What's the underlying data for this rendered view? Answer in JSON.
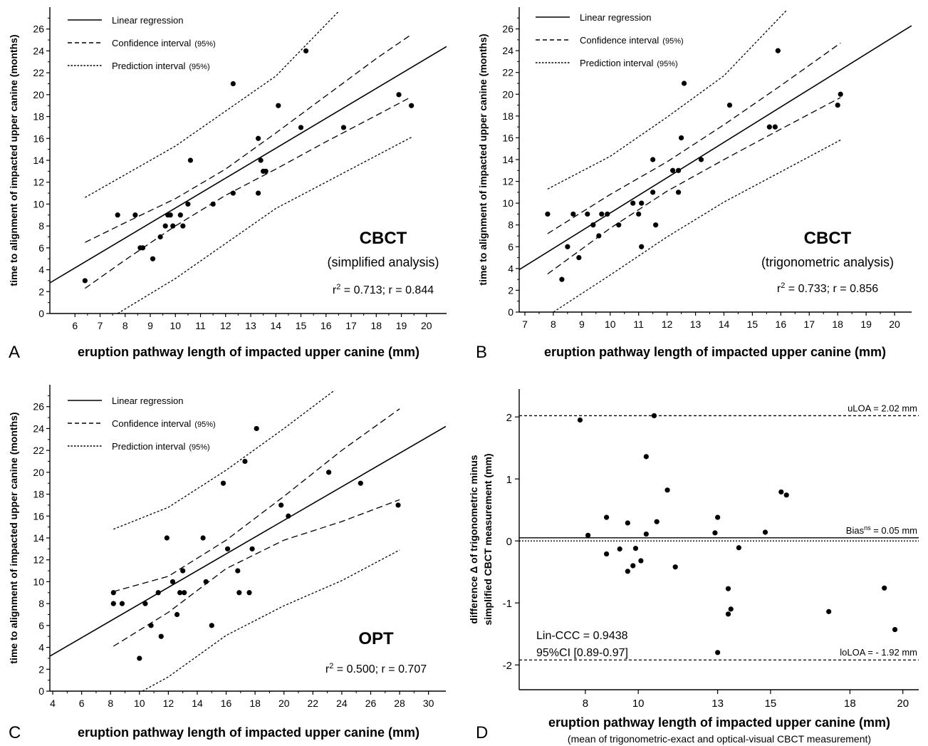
{
  "panels": [
    {
      "id": "A",
      "letter": "A",
      "type": "scatter",
      "xlabel": "eruption pathway length of impacted upper canine (mm)",
      "ylabel": "time to alignment of impacted upper canine (months)",
      "xlim": [
        5,
        20.8
      ],
      "ylim": [
        0,
        28
      ],
      "xticks": [
        6,
        7,
        8,
        9,
        10,
        11,
        12,
        13,
        14,
        15,
        16,
        17,
        18,
        19,
        20
      ],
      "yticks": [
        0,
        2,
        4,
        6,
        8,
        10,
        12,
        14,
        16,
        18,
        20,
        22,
        24,
        26
      ],
      "legend": [
        {
          "style": "solid",
          "label": "Linear regression",
          "suffix": ""
        },
        {
          "style": "dashed",
          "label": "Confidence interval",
          "suffix": "(95%)"
        },
        {
          "style": "dotted",
          "label": "Prediction interval",
          "suffix": "(95%)"
        }
      ],
      "title_big": "CBCT",
      "subtitle": "(simplified analysis)",
      "stats": {
        "r2_prefix": "r",
        "r2_sup": "2",
        "r2_rest": " = 0.713; r = 0.844"
      },
      "points": [
        [
          6.4,
          3
        ],
        [
          7.7,
          9
        ],
        [
          8.4,
          9
        ],
        [
          8.6,
          6
        ],
        [
          8.7,
          6
        ],
        [
          9.1,
          5
        ],
        [
          9.4,
          7
        ],
        [
          9.6,
          8
        ],
        [
          9.7,
          9
        ],
        [
          9.8,
          9
        ],
        [
          9.9,
          8
        ],
        [
          10.2,
          9
        ],
        [
          10.3,
          8
        ],
        [
          10.5,
          10
        ],
        [
          10.6,
          14
        ],
        [
          11.5,
          10
        ],
        [
          12.3,
          11
        ],
        [
          12.3,
          21
        ],
        [
          13.3,
          16
        ],
        [
          13.3,
          11
        ],
        [
          13.4,
          14
        ],
        [
          13.5,
          13
        ],
        [
          13.6,
          13
        ],
        [
          14.1,
          19
        ],
        [
          15,
          17
        ],
        [
          15.2,
          24
        ],
        [
          16.7,
          17
        ],
        [
          18.9,
          20
        ],
        [
          19.4,
          19
        ]
      ],
      "regression": [
        [
          5,
          2.8
        ],
        [
          20.8,
          24.4
        ]
      ],
      "ci_upper": [
        [
          6.4,
          6.5
        ],
        [
          8,
          8.3
        ],
        [
          10,
          10.5
        ],
        [
          12,
          13.2
        ],
        [
          14,
          16.5
        ],
        [
          16,
          19.9
        ],
        [
          18,
          23.3
        ],
        [
          19.4,
          25.5
        ]
      ],
      "ci_lower": [
        [
          6.4,
          2.3
        ],
        [
          8,
          4.9
        ],
        [
          10,
          8
        ],
        [
          12,
          10.8
        ],
        [
          14,
          13.2
        ],
        [
          16,
          15.7
        ],
        [
          18,
          18.1
        ],
        [
          19.4,
          19.8
        ]
      ],
      "pi_upper": [
        [
          6.4,
          10.6
        ],
        [
          10,
          15.3
        ],
        [
          14,
          21.7
        ],
        [
          16.5,
          27.6
        ]
      ],
      "pi_lower": [
        [
          7.7,
          0
        ],
        [
          10,
          3.2
        ],
        [
          14,
          9.6
        ],
        [
          19.4,
          16.1
        ]
      ]
    },
    {
      "id": "B",
      "letter": "B",
      "type": "scatter",
      "xlabel": "eruption pathway length of impacted upper canine (mm)",
      "ylabel": "time to alignment of impacted upper canine (months)",
      "xlim": [
        6.8,
        20.6
      ],
      "ylim": [
        0,
        28
      ],
      "xticks": [
        7,
        8,
        9,
        10,
        11,
        12,
        13,
        14,
        15,
        16,
        17,
        18,
        19,
        20
      ],
      "yticks": [
        0,
        2,
        4,
        6,
        8,
        10,
        12,
        14,
        16,
        18,
        20,
        22,
        24,
        26
      ],
      "legend": [
        {
          "style": "solid",
          "label": "Linear regression",
          "suffix": ""
        },
        {
          "style": "dashed",
          "label": "Confidence interval",
          "suffix": "(95%)"
        },
        {
          "style": "dotted",
          "label": "Prediction interval",
          "suffix": "(95%)"
        }
      ],
      "title_big": "CBCT",
      "subtitle": "(trigonometric analysis)",
      "stats": {
        "r2_prefix": "r",
        "r2_sup": "2",
        "r2_rest": " = 0.733; r = 0.856"
      },
      "points": [
        [
          7.8,
          9
        ],
        [
          8.3,
          3
        ],
        [
          8.5,
          6
        ],
        [
          8.7,
          9
        ],
        [
          8.9,
          5
        ],
        [
          9.2,
          9
        ],
        [
          9.4,
          8
        ],
        [
          9.6,
          7
        ],
        [
          9.7,
          9
        ],
        [
          9.9,
          9
        ],
        [
          10.3,
          8
        ],
        [
          10.8,
          10
        ],
        [
          11,
          9
        ],
        [
          11.1,
          10
        ],
        [
          11.1,
          6
        ],
        [
          11.5,
          14
        ],
        [
          11.5,
          11
        ],
        [
          11.6,
          8
        ],
        [
          12.2,
          13
        ],
        [
          12.4,
          13
        ],
        [
          12.4,
          11
        ],
        [
          12.5,
          16
        ],
        [
          12.6,
          21
        ],
        [
          13.2,
          14
        ],
        [
          14.2,
          19
        ],
        [
          15.6,
          17
        ],
        [
          15.8,
          17
        ],
        [
          15.9,
          24
        ],
        [
          18,
          19
        ],
        [
          18.1,
          20
        ]
      ],
      "regression": [
        [
          6.8,
          3.9
        ],
        [
          20.6,
          26.3
        ]
      ],
      "ci_upper": [
        [
          7.8,
          7.2
        ],
        [
          10,
          10.8
        ],
        [
          12,
          13.8
        ],
        [
          14,
          17.2
        ],
        [
          16,
          20.8
        ],
        [
          18.1,
          24.7
        ]
      ],
      "ci_lower": [
        [
          7.8,
          3.5
        ],
        [
          10,
          7.7
        ],
        [
          12,
          11.1
        ],
        [
          14,
          14
        ],
        [
          16,
          16.8
        ],
        [
          18.1,
          19.7
        ]
      ],
      "pi_upper": [
        [
          7.8,
          11.3
        ],
        [
          10,
          14.3
        ],
        [
          12,
          17.9
        ],
        [
          14,
          21.7
        ],
        [
          16.2,
          27.7
        ]
      ],
      "pi_lower": [
        [
          8,
          0
        ],
        [
          10,
          3.4
        ],
        [
          12,
          6.9
        ],
        [
          14,
          10.1
        ],
        [
          18.1,
          15.8
        ]
      ]
    },
    {
      "id": "C",
      "letter": "C",
      "type": "scatter",
      "xlabel": "eruption pathway length of impacted upper canine (mm)",
      "ylabel": "time to alignment of impacted upper canine (months)",
      "xlim": [
        3.8,
        31.2
      ],
      "ylim": [
        0,
        28
      ],
      "xticks": [
        4,
        6,
        8,
        10,
        12,
        14,
        16,
        18,
        20,
        22,
        24,
        26,
        28,
        30
      ],
      "yticks": [
        0,
        2,
        4,
        6,
        8,
        10,
        12,
        14,
        16,
        18,
        20,
        22,
        24,
        26
      ],
      "legend": [
        {
          "style": "solid",
          "label": "Linear regression",
          "suffix": ""
        },
        {
          "style": "dashed",
          "label": "Confidence interval",
          "suffix": "(95%)"
        },
        {
          "style": "dotted",
          "label": "Prediction interval",
          "suffix": "(95%)"
        }
      ],
      "title_big": "OPT",
      "subtitle": "",
      "stats": {
        "r2_prefix": "r",
        "r2_sup": "2",
        "r2_rest": " = 0.500; r = 0.707"
      },
      "points": [
        [
          8.2,
          9
        ],
        [
          8.2,
          8
        ],
        [
          8.8,
          8
        ],
        [
          10,
          3
        ],
        [
          10.4,
          8
        ],
        [
          10.8,
          6
        ],
        [
          11.3,
          9
        ],
        [
          11.5,
          5
        ],
        [
          11.9,
          14
        ],
        [
          12.3,
          10
        ],
        [
          12.6,
          7
        ],
        [
          12.8,
          9
        ],
        [
          13,
          11
        ],
        [
          13.1,
          9
        ],
        [
          14.4,
          14
        ],
        [
          14.6,
          10
        ],
        [
          15,
          6
        ],
        [
          15.8,
          19
        ],
        [
          16.1,
          13
        ],
        [
          16.8,
          11
        ],
        [
          16.9,
          9
        ],
        [
          17.3,
          21
        ],
        [
          17.6,
          9
        ],
        [
          17.8,
          13
        ],
        [
          18.1,
          24
        ],
        [
          19.8,
          17
        ],
        [
          20.3,
          16
        ],
        [
          23.1,
          20
        ],
        [
          25.3,
          19
        ],
        [
          27.9,
          17
        ]
      ],
      "regression": [
        [
          3.8,
          3.2
        ],
        [
          31.2,
          24.2
        ]
      ],
      "ci_upper": [
        [
          8.2,
          9.1
        ],
        [
          12,
          10.5
        ],
        [
          16,
          13.8
        ],
        [
          20,
          17.8
        ],
        [
          24,
          22
        ],
        [
          28,
          25.8
        ]
      ],
      "ci_lower": [
        [
          8.2,
          4.1
        ],
        [
          12,
          7.2
        ],
        [
          16,
          11.2
        ],
        [
          20,
          13.8
        ],
        [
          24,
          15.5
        ],
        [
          28,
          17.5
        ]
      ],
      "pi_upper": [
        [
          8.2,
          14.8
        ],
        [
          12,
          16.8
        ],
        [
          16,
          20.2
        ],
        [
          20,
          24
        ],
        [
          23.5,
          27.5
        ]
      ],
      "pi_lower": [
        [
          10.2,
          0
        ],
        [
          12,
          1.3
        ],
        [
          16,
          5.1
        ],
        [
          20,
          7.8
        ],
        [
          24,
          10.1
        ],
        [
          28,
          12.9
        ]
      ]
    },
    {
      "id": "D",
      "letter": "D",
      "type": "scatter",
      "xlabel": "eruption pathway length of impacted upper canine (mm)",
      "xlabel2": "(mean of trigonometric-exact and optical-visual CBCT measurement)",
      "ylabel_line1": "difference Δ of trigonometric minus",
      "ylabel_line2": "simplified CBCT measurement  (mm)",
      "xlim": [
        5.5,
        20.6
      ],
      "ylim": [
        -2.4,
        2.45
      ],
      "xticks": [
        8,
        10,
        13,
        15,
        18,
        20
      ],
      "yticks": [
        -2,
        -1,
        0,
        1,
        2
      ],
      "ytick_labels": [
        "-2",
        "-1",
        "0",
        "1",
        "2"
      ],
      "lines": [
        {
          "style": "dashed",
          "y": 2.02,
          "label": "uLOA = 2.02 mm"
        },
        {
          "style": "solid",
          "y": 0.05,
          "label_prefix": "Bias",
          "label_sup": "ns",
          "label_rest": " = 0.05 mm"
        },
        {
          "style": "dotted",
          "y": 0.0,
          "label": ""
        },
        {
          "style": "dashed",
          "y": -1.92,
          "label": "loLOA = - 1.92 mm"
        }
      ],
      "annotation_line1": "Lin-CCC = 0.9438",
      "annotation_line2": "95%CI [0.89-0.97]",
      "points": [
        [
          7.8,
          1.95
        ],
        [
          8.1,
          0.09
        ],
        [
          8.8,
          0.38
        ],
        [
          8.8,
          -0.21
        ],
        [
          9.3,
          -0.13
        ],
        [
          9.6,
          -0.49
        ],
        [
          9.6,
          0.29
        ],
        [
          9.8,
          -0.4
        ],
        [
          9.9,
          -0.12
        ],
        [
          10.1,
          -0.32
        ],
        [
          10.3,
          1.36
        ],
        [
          10.3,
          0.11
        ],
        [
          10.6,
          2.02
        ],
        [
          10.7,
          0.31
        ],
        [
          11.1,
          0.82
        ],
        [
          11.4,
          -0.42
        ],
        [
          12.9,
          0.13
        ],
        [
          13,
          0.38
        ],
        [
          13,
          -1.8
        ],
        [
          13.4,
          -0.77
        ],
        [
          13.4,
          -1.18
        ],
        [
          13.5,
          -1.1
        ],
        [
          13.8,
          -0.11
        ],
        [
          14.8,
          0.14
        ],
        [
          15.4,
          0.79
        ],
        [
          15.6,
          0.74
        ],
        [
          17.2,
          -1.14
        ],
        [
          19.3,
          -0.76
        ],
        [
          19.7,
          -1.43
        ]
      ]
    }
  ]
}
